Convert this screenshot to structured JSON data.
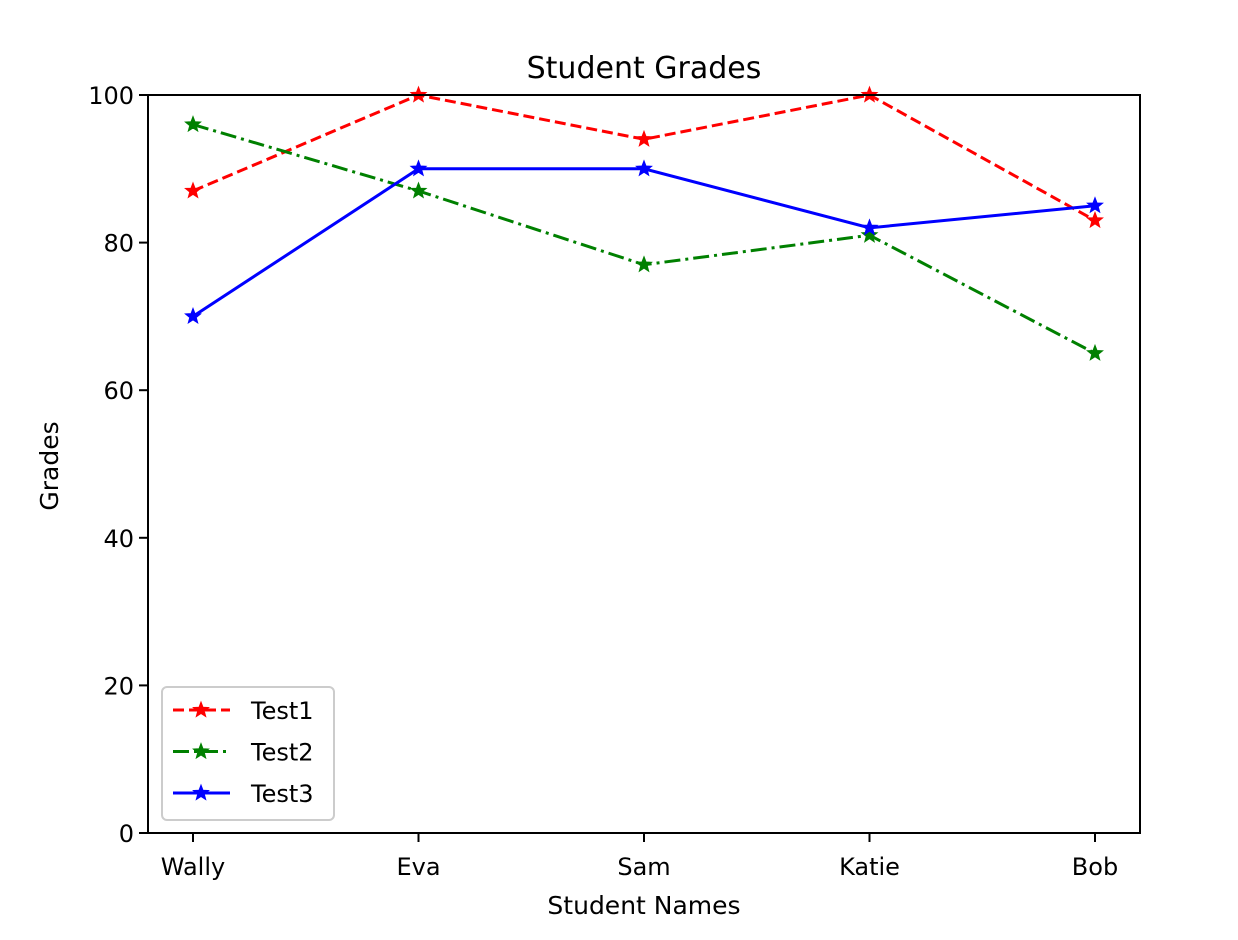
{
  "chart_data": {
    "type": "line",
    "title": "Student Grades",
    "xlabel": "Student Names",
    "ylabel": "Grades",
    "categories": [
      "Wally",
      "Eva",
      "Sam",
      "Katie",
      "Bob"
    ],
    "ylim": [
      0,
      100
    ],
    "yticks": [
      0,
      20,
      40,
      60,
      80,
      100
    ],
    "grid": false,
    "legend_position": "lower-left",
    "series": [
      {
        "name": "Test1",
        "values": [
          87,
          100,
          94,
          100,
          83
        ],
        "color": "#ff0000",
        "linestyle": "dashed",
        "marker": "star"
      },
      {
        "name": "Test2",
        "values": [
          96,
          87,
          77,
          81,
          65
        ],
        "color": "#008000",
        "linestyle": "dashdot",
        "marker": "star"
      },
      {
        "name": "Test3",
        "values": [
          70,
          90,
          90,
          82,
          85
        ],
        "color": "#0000ff",
        "linestyle": "solid",
        "marker": "star"
      }
    ]
  }
}
